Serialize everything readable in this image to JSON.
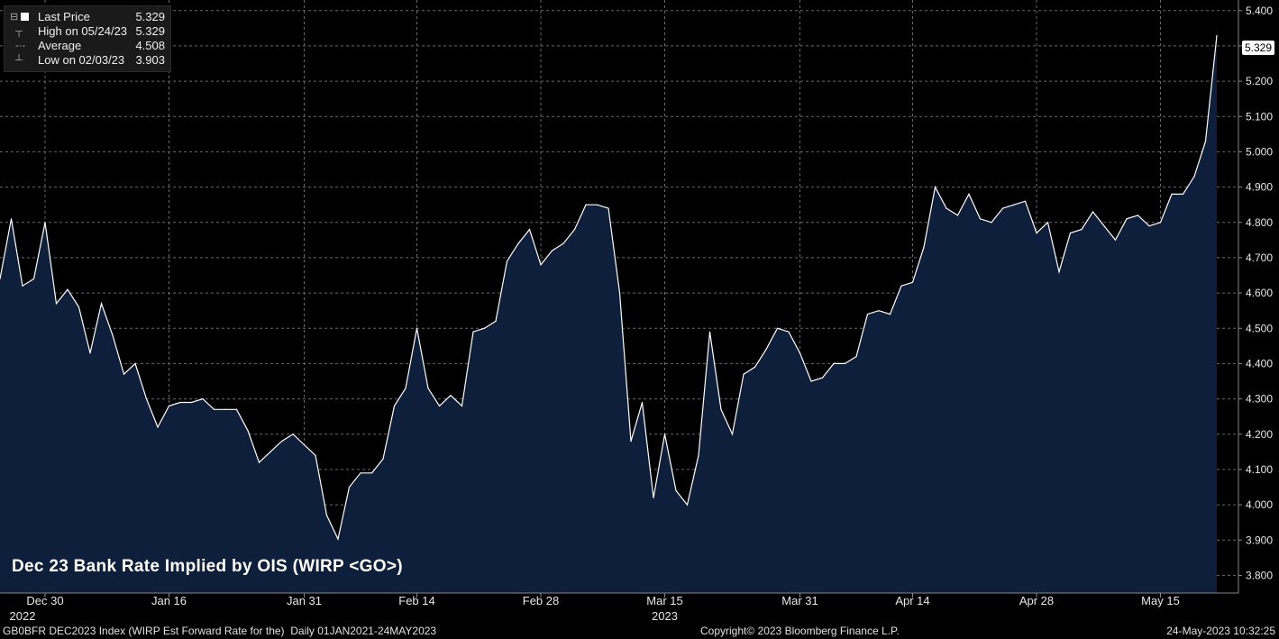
{
  "legend": [
    {
      "label": "Last Price",
      "value": "5.329"
    },
    {
      "label": "High on 05/24/23",
      "value": "5.329"
    },
    {
      "label": "Average",
      "value": "4.508"
    },
    {
      "label": "Low on 02/03/23",
      "value": "3.903"
    }
  ],
  "last_value_tag": "5.329",
  "footer": {
    "left": "GB0BFR DEC2023 Index (WIRP Est Forward Rate for the)  Daily 01JAN2021-24MAY2023",
    "center": "Copyright© 2023 Bloomberg Finance L.P.",
    "right": "24-May-2023 10:32:25"
  },
  "colors": {
    "background": "#000000",
    "area_fill": "#0e1f3c",
    "line": "#ffffff",
    "grid": "#6a6a6a"
  },
  "chart_data": {
    "type": "area",
    "title": "Dec 23 Bank Rate Implied by OIS (WIRP <GO>)",
    "xlabel": "",
    "ylabel": "",
    "ylim": [
      3.75,
      5.43
    ],
    "yticks": [
      "3.800",
      "3.900",
      "4.000",
      "4.100",
      "4.200",
      "4.300",
      "4.400",
      "4.500",
      "4.600",
      "4.700",
      "4.800",
      "4.900",
      "5.000",
      "5.100",
      "5.200",
      "5.300",
      "5.400"
    ],
    "ytick_values": [
      3.8,
      3.9,
      4.0,
      4.1,
      4.2,
      4.3,
      4.4,
      4.5,
      4.6,
      4.7,
      4.8,
      4.9,
      5.0,
      5.1,
      5.2,
      5.3,
      5.4
    ],
    "xtick_labels": [
      "Dec 30",
      "Jan 16",
      "Jan 31",
      "Feb 14",
      "Feb 28",
      "Mar 15",
      "Mar 31",
      "Apr 14",
      "Apr 28",
      "May 15"
    ],
    "xtick_index": [
      4,
      15,
      27,
      37,
      48,
      59,
      71,
      81,
      92,
      103
    ],
    "year_labels": [
      {
        "label": "2022",
        "index": 2
      },
      {
        "label": "2023",
        "index": 59
      }
    ],
    "grid": true,
    "legend_position": "top-left",
    "series": [
      {
        "name": "Last Price",
        "values": [
          4.64,
          4.81,
          4.62,
          4.64,
          4.8,
          4.57,
          4.61,
          4.56,
          4.43,
          4.57,
          4.48,
          4.37,
          4.4,
          4.3,
          4.22,
          4.28,
          4.29,
          4.29,
          4.3,
          4.27,
          4.27,
          4.27,
          4.21,
          4.12,
          4.15,
          4.18,
          4.2,
          4.17,
          4.14,
          3.97,
          3.903,
          4.05,
          4.09,
          4.09,
          4.13,
          4.28,
          4.33,
          4.5,
          4.33,
          4.28,
          4.31,
          4.28,
          4.49,
          4.5,
          4.52,
          4.69,
          4.74,
          4.78,
          4.68,
          4.72,
          4.74,
          4.78,
          4.85,
          4.85,
          4.84,
          4.6,
          4.18,
          4.29,
          4.02,
          4.2,
          4.04,
          4.0,
          4.14,
          4.49,
          4.27,
          4.2,
          4.37,
          4.39,
          4.44,
          4.5,
          4.49,
          4.43,
          4.35,
          4.36,
          4.4,
          4.4,
          4.42,
          4.54,
          4.55,
          4.54,
          4.62,
          4.63,
          4.73,
          4.9,
          4.84,
          4.82,
          4.88,
          4.81,
          4.8,
          4.84,
          4.85,
          4.86,
          4.77,
          4.8,
          4.66,
          4.77,
          4.78,
          4.83,
          4.79,
          4.75,
          4.81,
          4.82,
          4.79,
          4.8,
          4.88,
          4.88,
          4.93,
          5.03,
          5.329
        ]
      }
    ]
  }
}
